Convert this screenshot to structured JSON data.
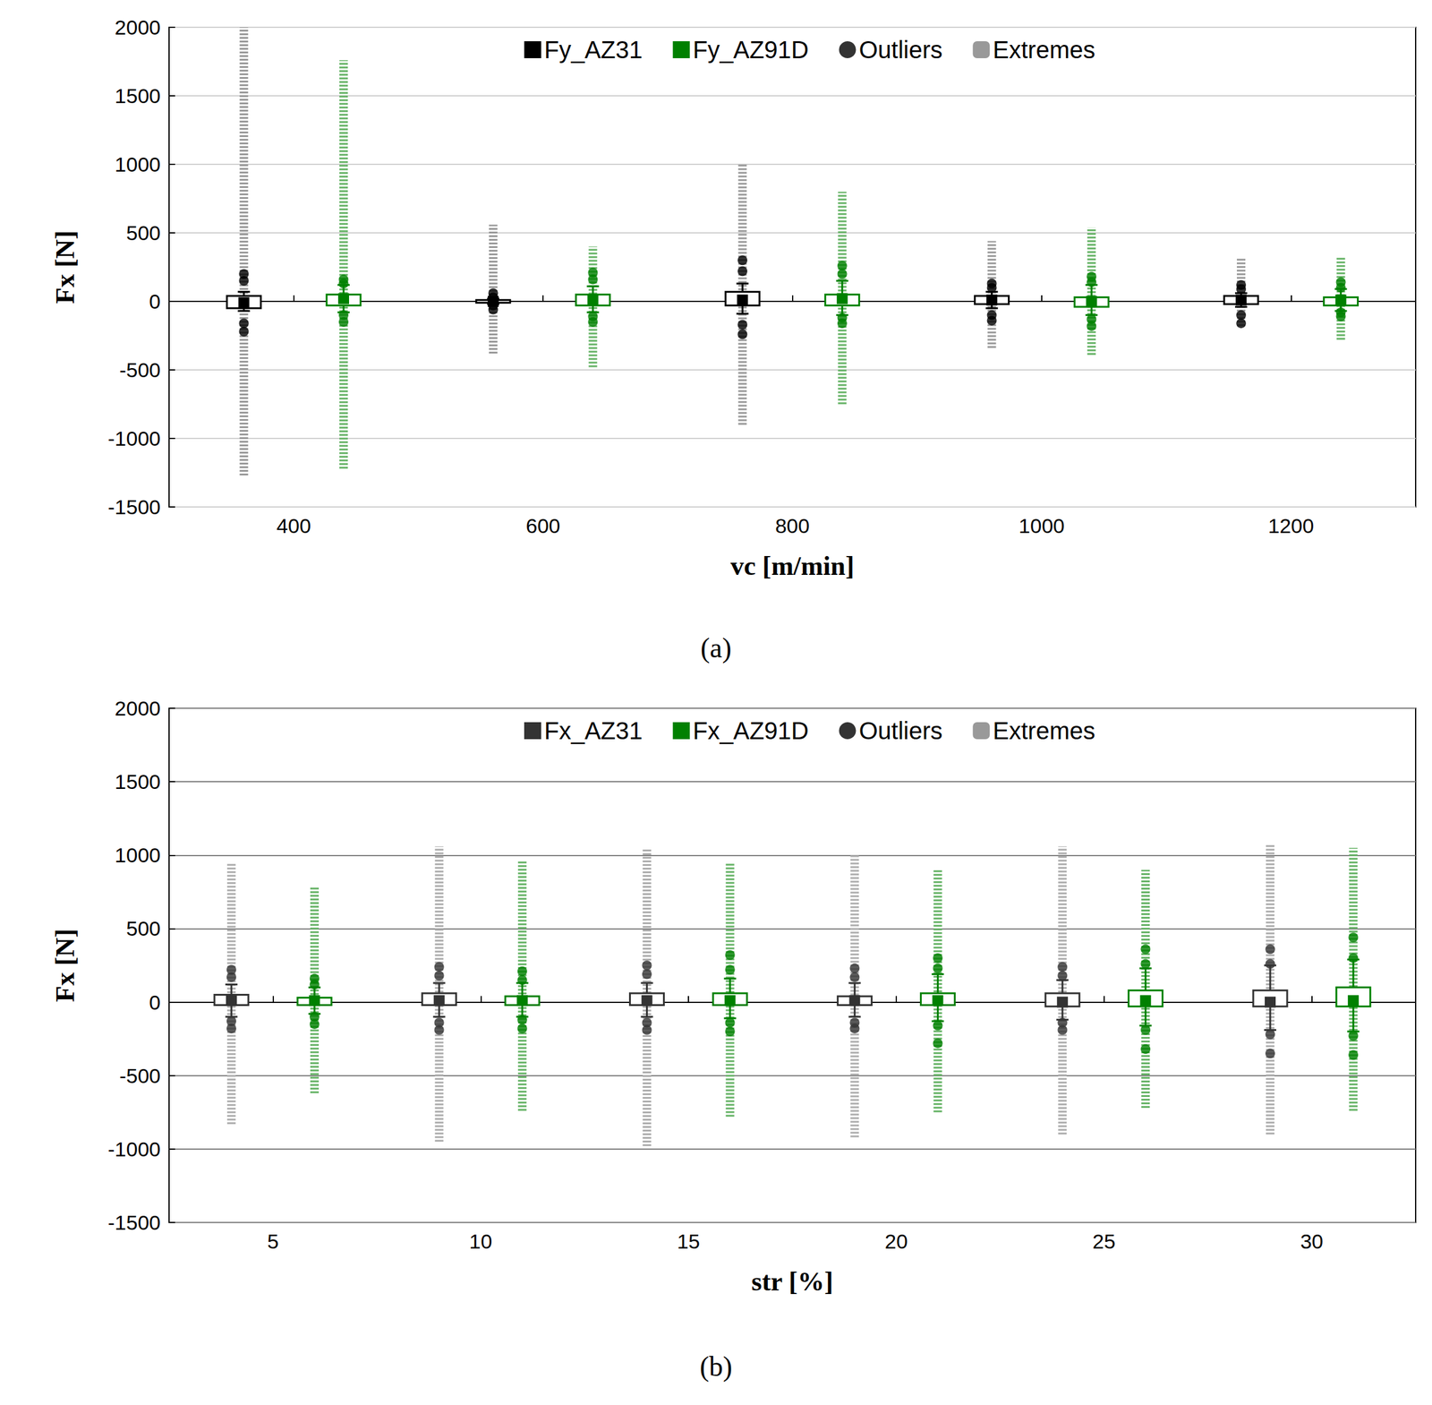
{
  "chart_data": [
    {
      "type": "boxplot",
      "title": "(a)",
      "x_label": "vc [m/min]",
      "y_label": "Fx [N]",
      "xlim": [
        300,
        1300
      ],
      "xticks": [
        400,
        600,
        800,
        1000,
        1200
      ],
      "ylim": [
        -1500,
        2000
      ],
      "yticks": [
        -1500,
        -1000,
        -500,
        0,
        500,
        1000,
        1500,
        2000
      ],
      "grid": true,
      "legend": "top",
      "outlier_label": "Outliers",
      "extreme_label": "Extremes",
      "series": [
        {
          "name": "Fy_AZ31",
          "color": "#000000",
          "x": [
            360,
            560,
            760,
            960,
            1160
          ],
          "boxes": [
            [
              -70,
              -50,
              -10,
              40,
              70
            ],
            [
              -20,
              -10,
              0,
              10,
              20
            ],
            [
              -90,
              -30,
              10,
              70,
              130
            ],
            [
              -50,
              -20,
              10,
              40,
              70
            ],
            [
              -40,
              -20,
              10,
              40,
              60
            ]
          ],
          "outliers": [
            [
              -220,
              -160,
              150,
              200
            ],
            [
              -60,
              -30,
              30,
              60
            ],
            [
              -240,
              -170,
              220,
              300
            ],
            [
              -140,
              -100,
              100,
              130
            ],
            [
              -160,
              -100,
              90,
              120
            ]
          ],
          "extremes": [
            [
              -1270,
              2000
            ],
            [
              -380,
              560
            ],
            [
              -900,
              1000
            ],
            [
              -340,
              440
            ],
            [
              -180,
              320
            ]
          ]
        },
        {
          "name": "Fy_AZ91D",
          "color": "#008000",
          "x": [
            440,
            640,
            840,
            1040,
            1240
          ],
          "boxes": [
            [
              -80,
              -30,
              20,
              50,
              120
            ],
            [
              -80,
              -30,
              10,
              50,
              110
            ],
            [
              -100,
              -30,
              20,
              50,
              150
            ],
            [
              -100,
              -40,
              0,
              30,
              120
            ],
            [
              -70,
              -30,
              10,
              30,
              90
            ]
          ],
          "outliers": [
            [
              -150,
              -100,
              130,
              160
            ],
            [
              -150,
              -110,
              160,
              210
            ],
            [
              -160,
              -120,
              200,
              260
            ],
            [
              -180,
              -130,
              140,
              180
            ],
            [
              -110,
              -80,
              100,
              140
            ]
          ],
          "extremes": [
            [
              -1220,
              1760
            ],
            [
              -480,
              400
            ],
            [
              -750,
              800
            ],
            [
              -390,
              540
            ],
            [
              -280,
              320
            ]
          ]
        }
      ]
    },
    {
      "type": "boxplot",
      "title": "(b)",
      "x_label": "str [%]",
      "y_label": "Fx [N]",
      "xlim": [
        2.5,
        32.5
      ],
      "xticks": [
        5,
        10,
        15,
        20,
        25,
        30
      ],
      "ylim": [
        -1500,
        2000
      ],
      "yticks": [
        -1500,
        -1000,
        -500,
        0,
        500,
        1000,
        1500,
        2000
      ],
      "grid": true,
      "legend": "top",
      "outlier_label": "Outliers",
      "extreme_label": "Extremes",
      "series": [
        {
          "name": "Fx_AZ31",
          "color": "#333333",
          "x": [
            4,
            9,
            14,
            19,
            24,
            29
          ],
          "boxes": [
            [
              -100,
              -20,
              10,
              50,
              120
            ],
            [
              -100,
              -20,
              10,
              60,
              130
            ],
            [
              -100,
              -20,
              10,
              60,
              130
            ],
            [
              -100,
              -20,
              10,
              40,
              130
            ],
            [
              -120,
              -30,
              0,
              60,
              150
            ],
            [
              -190,
              -30,
              0,
              80,
              250
            ]
          ],
          "outliers": [
            [
              -180,
              -130,
              170,
              220
            ],
            [
              -190,
              -140,
              180,
              240
            ],
            [
              -190,
              -140,
              190,
              250
            ],
            [
              -180,
              -140,
              170,
              230
            ],
            [
              -190,
              -140,
              180,
              240
            ],
            [
              -350,
              -220,
              260,
              360
            ]
          ],
          "extremes": [
            [
              -830,
              950
            ],
            [
              -950,
              1060
            ],
            [
              -980,
              1050
            ],
            [
              -920,
              1010
            ],
            [
              -900,
              1060
            ],
            [
              -900,
              1080
            ]
          ]
        },
        {
          "name": "Fx_AZ91D",
          "color": "#008000",
          "x": [
            6,
            11,
            16,
            21,
            26,
            31
          ],
          "boxes": [
            [
              -80,
              -20,
              10,
              30,
              100
            ],
            [
              -100,
              -20,
              10,
              40,
              130
            ],
            [
              -110,
              -20,
              10,
              60,
              160
            ],
            [
              -130,
              -20,
              10,
              60,
              190
            ],
            [
              -160,
              -30,
              10,
              80,
              230
            ],
            [
              -200,
              -30,
              10,
              100,
              290
            ]
          ],
          "outliers": [
            [
              -150,
              -100,
              120,
              160
            ],
            [
              -180,
              -120,
              150,
              210
            ],
            [
              -200,
              -140,
              220,
              320
            ],
            [
              -280,
              -160,
              230,
              300
            ],
            [
              -320,
              -190,
              260,
              360
            ],
            [
              -360,
              -230,
              300,
              440
            ]
          ],
          "extremes": [
            [
              -620,
              780
            ],
            [
              -740,
              960
            ],
            [
              -780,
              950
            ],
            [
              -750,
              900
            ],
            [
              -720,
              900
            ],
            [
              -740,
              1050
            ]
          ]
        }
      ]
    }
  ]
}
